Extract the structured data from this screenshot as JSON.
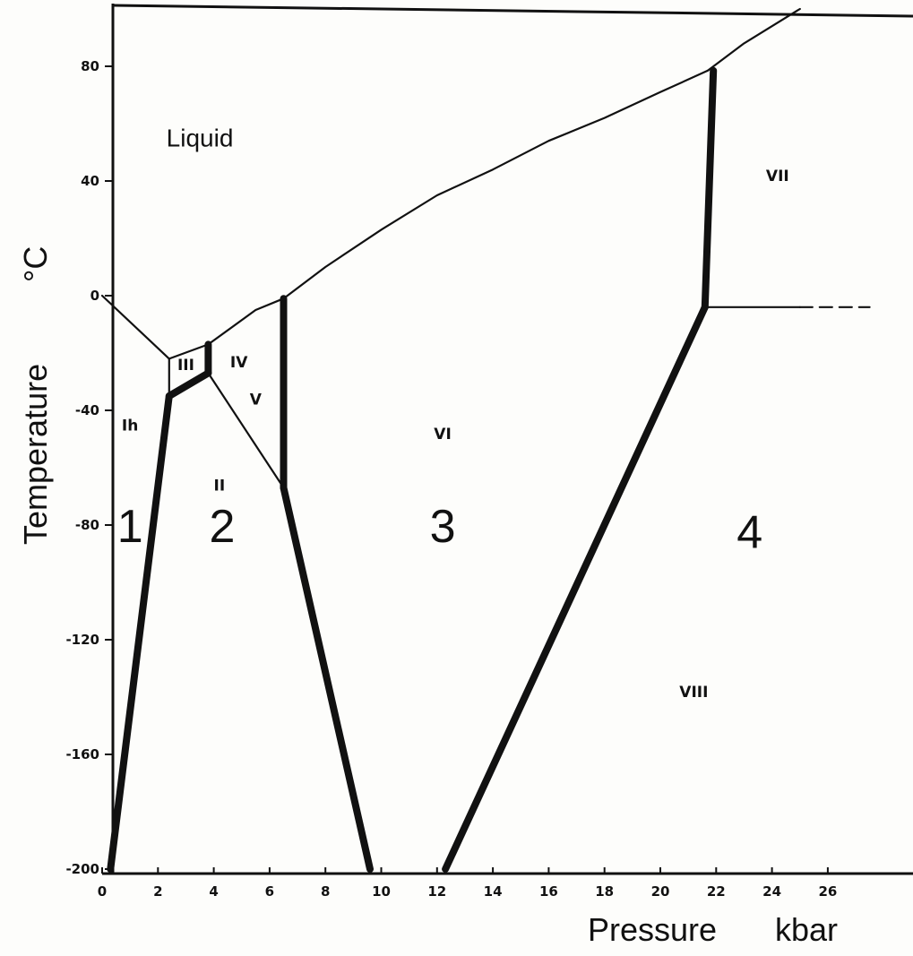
{
  "chart_data": {
    "type": "line",
    "title": "",
    "xlabel": "Pressure",
    "xunit": "kbar",
    "ylabel": "Temperature",
    "yunit": "°C",
    "xlim": [
      0,
      27.5
    ],
    "ylim": [
      -200,
      100
    ],
    "x_ticks": [
      "0",
      "2",
      "4",
      "6",
      "8",
      "10",
      "12",
      "14",
      "16",
      "18",
      "20",
      "22",
      "24",
      "26"
    ],
    "y_ticks": [
      "80",
      "40",
      "0",
      "-40",
      "-80",
      "-120",
      "-160",
      "-200"
    ],
    "boundaries": [
      {
        "name": "liquid-Ih",
        "style": "thin",
        "points": [
          [
            0,
            0
          ],
          [
            2.4,
            -22
          ]
        ]
      },
      {
        "name": "liquid-III",
        "style": "thin",
        "points": [
          [
            2.4,
            -22
          ],
          [
            3.8,
            -17
          ]
        ]
      },
      {
        "name": "liquid-V",
        "style": "thin",
        "points": [
          [
            3.8,
            -17
          ],
          [
            5.5,
            -5
          ],
          [
            6.5,
            -1
          ]
        ]
      },
      {
        "name": "liquid-VI",
        "style": "thin",
        "points": [
          [
            6.5,
            -1
          ],
          [
            8,
            10
          ],
          [
            10,
            23
          ],
          [
            12,
            35
          ],
          [
            14,
            44
          ],
          [
            16,
            54
          ],
          [
            18,
            62
          ],
          [
            20,
            71
          ],
          [
            21.7,
            78.5
          ]
        ]
      },
      {
        "name": "liquid-VII",
        "style": "thin",
        "points": [
          [
            21.7,
            78.5
          ],
          [
            23,
            88
          ],
          [
            25,
            100
          ]
        ]
      },
      {
        "name": "Ih-III",
        "style": "thin",
        "points": [
          [
            2.4,
            -22
          ],
          [
            2.4,
            -35
          ]
        ]
      },
      {
        "name": "III-V",
        "style": "thick",
        "points": [
          [
            3.8,
            -17
          ],
          [
            3.8,
            -27
          ]
        ]
      },
      {
        "name": "III-II",
        "style": "thick",
        "points": [
          [
            2.4,
            -35
          ],
          [
            3.8,
            -27
          ]
        ]
      },
      {
        "name": "V-II",
        "style": "thin",
        "points": [
          [
            3.8,
            -27
          ],
          [
            6.5,
            -67
          ]
        ]
      },
      {
        "name": "V-VI",
        "style": "thick",
        "points": [
          [
            6.5,
            -1
          ],
          [
            6.5,
            -67
          ]
        ]
      },
      {
        "name": "Ih-II",
        "style": "thick",
        "points": [
          [
            2.4,
            -35
          ],
          [
            0.3,
            -200
          ]
        ]
      },
      {
        "name": "II-VI",
        "style": "thick",
        "points": [
          [
            6.5,
            -67
          ],
          [
            9.6,
            -200
          ]
        ]
      },
      {
        "name": "VI-VIII",
        "style": "thick",
        "points": [
          [
            21.6,
            -4
          ],
          [
            12.3,
            -200
          ]
        ]
      },
      {
        "name": "VI-VII",
        "style": "thick",
        "points": [
          [
            21.6,
            -4
          ],
          [
            21.9,
            78.5
          ]
        ]
      },
      {
        "name": "VII-VIII",
        "style": "thin",
        "points": [
          [
            21.6,
            -4
          ],
          [
            25,
            -4
          ]
        ]
      },
      {
        "name": "VII-VIII-extrapolated",
        "style": "dashed",
        "points": [
          [
            25,
            -4
          ],
          [
            27.5,
            -4
          ]
        ]
      }
    ],
    "phase_labels": [
      {
        "text": "Liquid",
        "x": 3.5,
        "y": 52,
        "kind": "liquid"
      },
      {
        "text": "VII",
        "x": 24.2,
        "y": 40,
        "kind": "phase"
      },
      {
        "text": "III",
        "x": 3.0,
        "y": -26,
        "kind": "phase"
      },
      {
        "text": "IV",
        "x": 4.9,
        "y": -25,
        "kind": "phase"
      },
      {
        "text": "V",
        "x": 5.5,
        "y": -38,
        "kind": "phase"
      },
      {
        "text": "Ih",
        "x": 1.0,
        "y": -47,
        "kind": "phase"
      },
      {
        "text": "VI",
        "x": 12.2,
        "y": -50,
        "kind": "phase"
      },
      {
        "text": "II",
        "x": 4.2,
        "y": -68,
        "kind": "phase"
      },
      {
        "text": "1",
        "x": 1.0,
        "y": -86,
        "kind": "region"
      },
      {
        "text": "2",
        "x": 4.3,
        "y": -86,
        "kind": "region"
      },
      {
        "text": "3",
        "x": 12.2,
        "y": -86,
        "kind": "region"
      },
      {
        "text": "4",
        "x": 23.2,
        "y": -88,
        "kind": "region"
      },
      {
        "text": "VIII",
        "x": 21.2,
        "y": -140,
        "kind": "phase"
      }
    ]
  }
}
